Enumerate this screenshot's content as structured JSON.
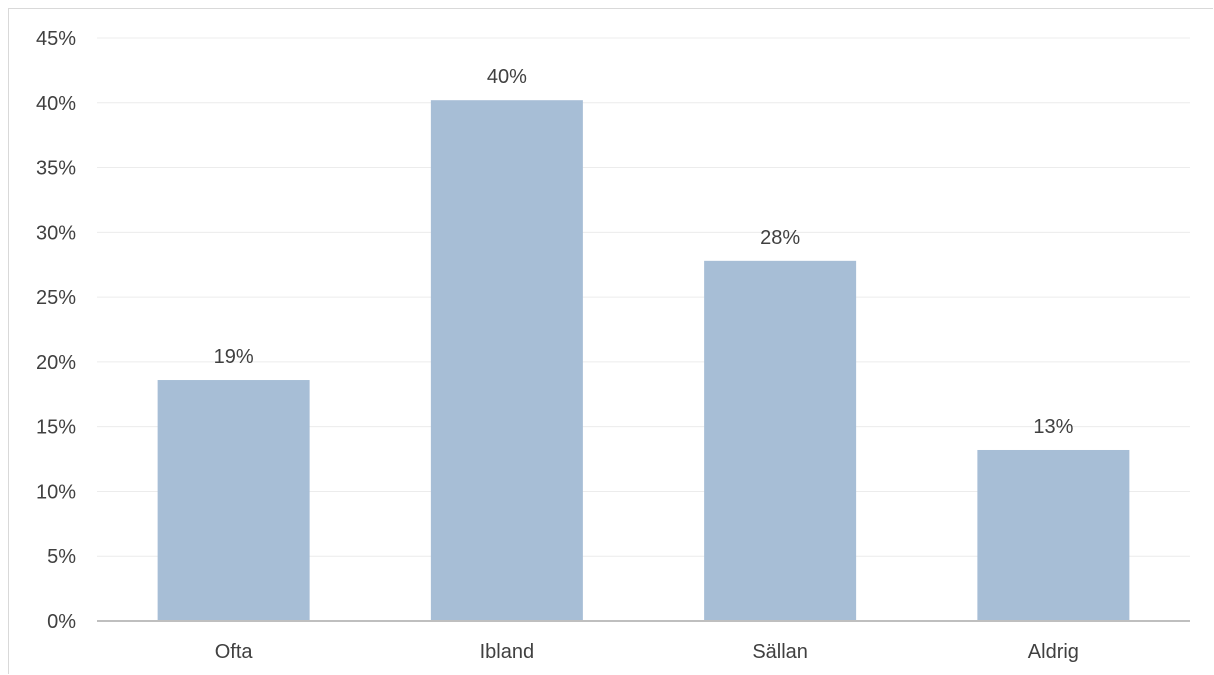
{
  "chart_data": {
    "type": "bar",
    "categories": [
      "Ofta",
      "Ibland",
      "Sällan",
      "Aldrig"
    ],
    "values": [
      18.6,
      40.2,
      27.8,
      13.2
    ],
    "data_labels": [
      "19%",
      "40%",
      "28%",
      "13%"
    ],
    "y_ticks": [
      "0%",
      "5%",
      "10%",
      "15%",
      "20%",
      "25%",
      "30%",
      "35%",
      "40%",
      "45%"
    ],
    "ylim": [
      0,
      45
    ],
    "grid": true,
    "legend": "none",
    "bar_color": "#a7bed6"
  }
}
